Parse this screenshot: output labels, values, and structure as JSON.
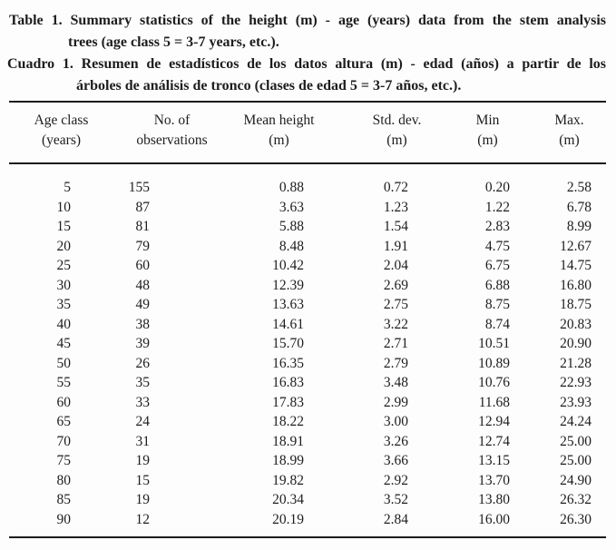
{
  "captions": {
    "english": {
      "line1": "Table 1. Summary statistics of the height (m) - age (years) data from the stem analysis",
      "line2": "trees (age class 5 = 3-7 years, etc.).",
      "full": "Table 1. Summary statistics of the height (m) - age (years) data from the stem analysis trees (age class 5 = 3-7 years, etc.)."
    },
    "spanish": {
      "line1": "Cuadro 1. Resumen de estadísticos de los datos altura (m) - edad (años) a partir de los",
      "line2": "árboles de análisis de tronco (clases de edad 5 = 3-7 años, etc.).",
      "full": "Cuadro 1. Resumen de estadísticos de los datos altura (m) - edad (años) a partir de los árboles de análisis de tronco (clases de edad 5 = 3-7 años, etc.)."
    }
  },
  "table": {
    "headers": [
      {
        "line1": "Age class",
        "line2": "(years)"
      },
      {
        "line1": "No. of",
        "line2": "observations"
      },
      {
        "line1": "Mean height",
        "line2": "(m)"
      },
      {
        "line1": "Std. dev.",
        "line2": "(m)"
      },
      {
        "line1": "Min",
        "line2": "(m)"
      },
      {
        "line1": "Max.",
        "line2": "(m)"
      }
    ],
    "rows": [
      [
        "5",
        "155",
        "0.88",
        "0.72",
        "0.20",
        "2.58"
      ],
      [
        "10",
        "87",
        "3.63",
        "1.23",
        "1.22",
        "6.78"
      ],
      [
        "15",
        "81",
        "5.88",
        "1.54",
        "2.83",
        "8.99"
      ],
      [
        "20",
        "79",
        "8.48",
        "1.91",
        "4.75",
        "12.67"
      ],
      [
        "25",
        "60",
        "10.42",
        "2.04",
        "6.75",
        "14.75"
      ],
      [
        "30",
        "48",
        "12.39",
        "2.69",
        "6.88",
        "16.80"
      ],
      [
        "35",
        "49",
        "13.63",
        "2.75",
        "8.75",
        "18.75"
      ],
      [
        "40",
        "38",
        "14.61",
        "3.22",
        "8.74",
        "20.83"
      ],
      [
        "45",
        "39",
        "15.70",
        "2.71",
        "10.51",
        "20.90"
      ],
      [
        "50",
        "26",
        "16.35",
        "2.79",
        "10.89",
        "21.28"
      ],
      [
        "55",
        "35",
        "16.83",
        "3.48",
        "10.76",
        "22.93"
      ],
      [
        "60",
        "33",
        "17.83",
        "2.99",
        "11.68",
        "23.93"
      ],
      [
        "65",
        "24",
        "18.22",
        "3.00",
        "12.94",
        "24.24"
      ],
      [
        "70",
        "31",
        "18.91",
        "3.26",
        "12.74",
        "25.00"
      ],
      [
        "75",
        "19",
        "18.99",
        "3.66",
        "13.15",
        "25.00"
      ],
      [
        "80",
        "15",
        "19.82",
        "2.92",
        "13.70",
        "24.90"
      ],
      [
        "85",
        "19",
        "20.34",
        "3.52",
        "13.80",
        "26.32"
      ],
      [
        "90",
        "12",
        "20.19",
        "2.84",
        "16.00",
        "26.30"
      ]
    ]
  },
  "colors": {
    "background": "#fdfdfd",
    "text": "#1d1d1d",
    "rule": "#1a1a1a"
  }
}
